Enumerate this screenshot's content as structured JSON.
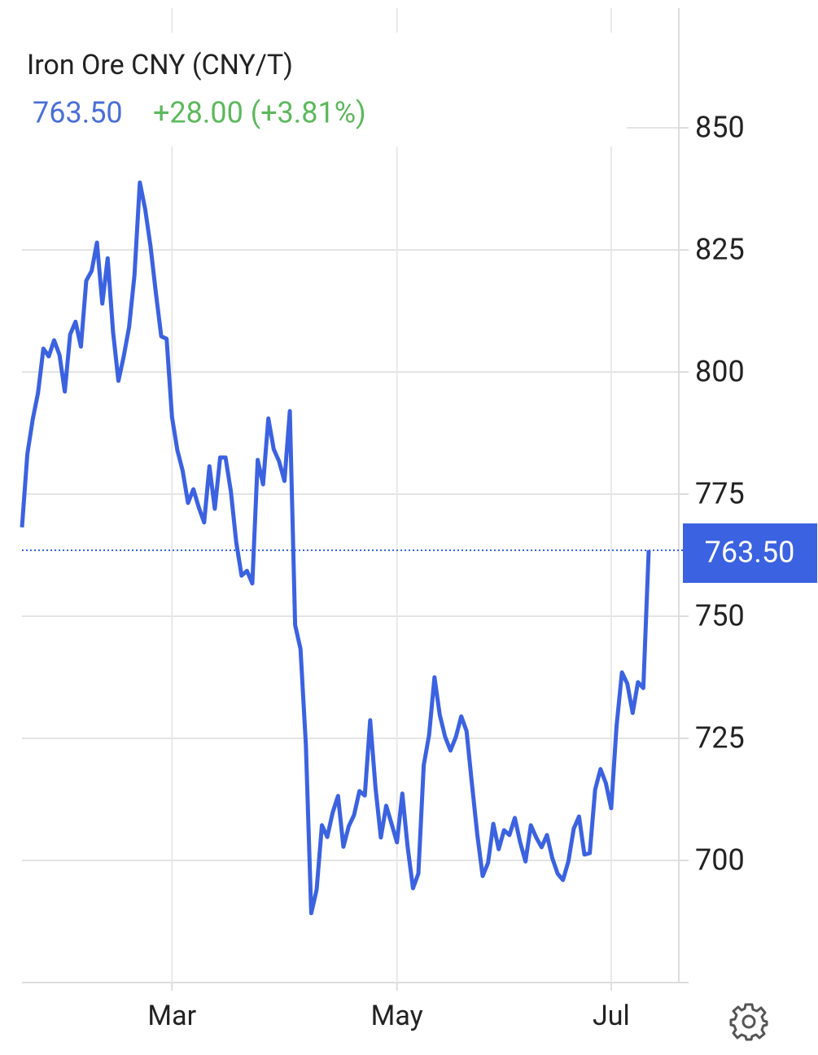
{
  "chart_data": {
    "type": "line",
    "title": "Iron Ore CNY (CNY/T)",
    "price": "763.50",
    "change": "+28.00 (+3.81%)",
    "series": [
      {
        "color": "#3b62e0",
        "values": [
          768.2,
          783.2,
          790.3,
          795.7,
          804.8,
          803.2,
          806.5,
          803.5,
          796,
          807.7,
          810.3,
          805.2,
          818.7,
          820.7,
          826.5,
          814,
          823.3,
          808.2,
          798.2,
          803.2,
          809.2,
          819.8,
          838.8,
          833.3,
          825.8,
          816.2,
          807.3,
          806.8,
          790.8,
          784,
          779.8,
          773.2,
          776,
          772.3,
          769.2,
          780.7,
          772,
          782.5,
          782.5,
          775.5,
          765.2,
          758.3,
          759.3,
          756.7,
          782,
          777,
          790.5,
          784.2,
          781.7,
          777.7,
          792,
          748.2,
          743.3,
          723.7,
          689.2,
          694,
          707.2,
          704.8,
          709.8,
          713.2,
          702.8,
          707,
          709.3,
          714.2,
          713.3,
          728.7,
          714.8,
          704.7,
          711.2,
          707.5,
          703.7,
          713.7,
          702.8,
          694.3,
          697.3,
          719.5,
          725.7,
          737.5,
          729.8,
          725.3,
          722.5,
          725.3,
          729.5,
          726.5,
          715.7,
          705.3,
          696.8,
          699.5,
          707.5,
          702.3,
          706.2,
          705.2,
          708.7,
          703.7,
          699.8,
          707.2,
          704.7,
          702.7,
          705.2,
          700.5,
          697.3,
          696,
          699.8,
          706.5,
          709,
          701.2,
          701.5,
          714.5,
          718.7,
          715.8,
          710.7,
          727.5,
          738.5,
          736.2,
          730.2,
          736.5,
          735.3,
          763.5
        ]
      }
    ],
    "categories": [
      null,
      null,
      null,
      null,
      null,
      null,
      null,
      null,
      null,
      null,
      null,
      null,
      null,
      null,
      null,
      null,
      null,
      null,
      null,
      null,
      null,
      null,
      null,
      null,
      null,
      null,
      null,
      null,
      "Mar",
      null,
      null,
      null,
      null,
      null,
      null,
      null,
      null,
      null,
      null,
      null,
      null,
      null,
      null,
      null,
      null,
      null,
      null,
      null,
      null,
      null,
      null,
      null,
      null,
      null,
      null,
      null,
      null,
      null,
      null,
      null,
      null,
      null,
      null,
      null,
      null,
      null,
      null,
      null,
      null,
      null,
      "May",
      null,
      null,
      null,
      null,
      null,
      null,
      null,
      null,
      null,
      null,
      null,
      null,
      null,
      null,
      null,
      null,
      null,
      null,
      null,
      null,
      null,
      null,
      null,
      null,
      null,
      null,
      null,
      null,
      null,
      null,
      null,
      null,
      null,
      null,
      null,
      null,
      null,
      null,
      null,
      "Jul",
      null,
      null,
      null,
      null,
      null,
      null,
      null
    ],
    "ylim": [
      675,
      875
    ],
    "yticks": [
      700,
      725,
      750,
      775,
      800,
      825,
      850
    ],
    "grid": true
  }
}
